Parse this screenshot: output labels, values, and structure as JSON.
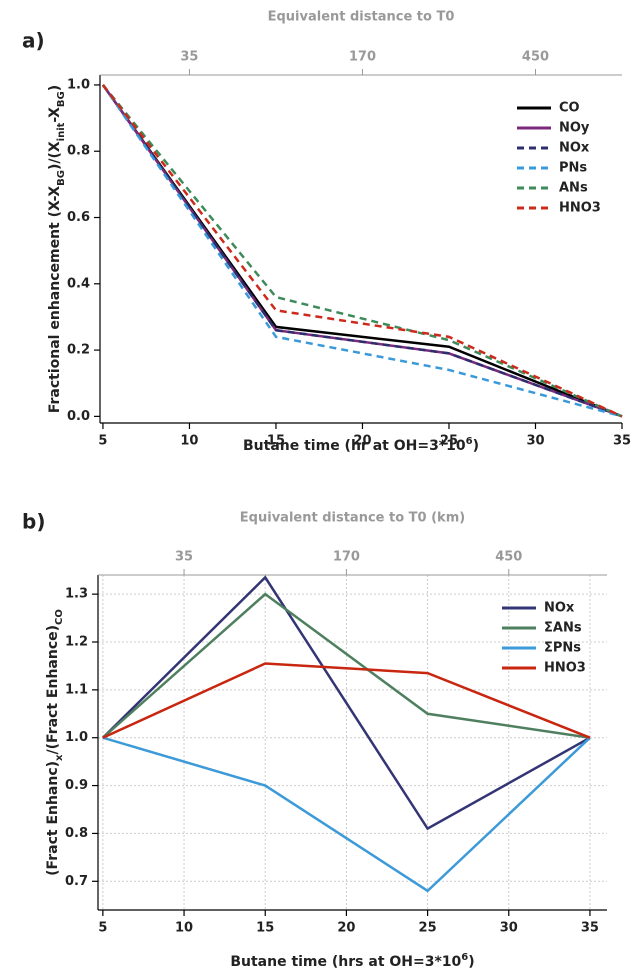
{
  "chart_data": [
    {
      "type": "line",
      "panel_label": "a)",
      "top_axis_label": "Equivalent distance to T0",
      "x_label": [
        {
          "text": "Butane time (hr at OH=3*10"
        },
        {
          "text": "6",
          "sup": true
        },
        {
          "text": ")"
        }
      ],
      "y_label": [
        {
          "text": "Fractional enhancement (X-X"
        },
        {
          "text": "BG",
          "sub": true
        },
        {
          "text": ")/(X"
        },
        {
          "text": "init",
          "sub": true
        },
        {
          "text": "-X"
        },
        {
          "text": "BG",
          "sub": true
        },
        {
          "text": ")"
        }
      ],
      "x": [
        5,
        15,
        25,
        35
      ],
      "xlim": [
        4.83,
        35
      ],
      "ylim": [
        -0.02,
        1.03
      ],
      "xticks": [
        5,
        10,
        15,
        20,
        25,
        30,
        35
      ],
      "yticks": [
        {
          "value": 0,
          "label": "0.0"
        },
        0.2,
        0.4,
        0.6,
        0.8,
        {
          "value": 1,
          "label": "1.0"
        }
      ],
      "x2ticks": [
        {
          "value": 10,
          "label": "35"
        },
        {
          "value": 20,
          "label": "170"
        },
        {
          "value": 30,
          "label": "450"
        }
      ],
      "grid": false,
      "legend": "upper right",
      "series": [
        {
          "name": "CO",
          "color": "#000000",
          "dashed": false,
          "values": [
            1.0,
            0.27,
            0.21,
            0.0
          ]
        },
        {
          "name": "NOy",
          "color": "#7b2a7b",
          "dashed": false,
          "values": [
            1.0,
            0.26,
            0.19,
            0.0
          ]
        },
        {
          "name": "NOx",
          "color": "#2e2e6e",
          "dashed": true,
          "values": [
            1.0,
            0.26,
            0.19,
            0.0
          ]
        },
        {
          "name": "PNs",
          "color": "#3a9ad9",
          "dashed": true,
          "values": [
            1.0,
            0.24,
            0.14,
            0.0
          ]
        },
        {
          "name": "ANs",
          "color": "#3d8a5a",
          "dashed": true,
          "values": [
            1.0,
            0.36,
            0.23,
            0.0
          ]
        },
        {
          "name": "HNO3",
          "color": "#cc2a1a",
          "dashed": true,
          "values": [
            1.0,
            0.32,
            0.24,
            0.0
          ]
        }
      ]
    },
    {
      "type": "line",
      "panel_label": "b)",
      "top_axis_label": "Equivalent distance to T0 (km)",
      "x_label": [
        {
          "text": "Butane time (hrs at OH=3*10"
        },
        {
          "text": "6",
          "sup": true
        },
        {
          "text": ")"
        }
      ],
      "y_label": [
        {
          "text": "(Fract Enhanc)"
        },
        {
          "text": "x",
          "sub": true
        },
        {
          "text": "/(Fract Enhance)"
        },
        {
          "text": "CO",
          "sub": true
        }
      ],
      "x": [
        5,
        15,
        25,
        35
      ],
      "xlim": [
        4.7,
        36.05
      ],
      "ylim": [
        0.64,
        1.34
      ],
      "xticks": [
        5,
        10,
        15,
        20,
        25,
        30,
        35
      ],
      "yticks": [
        0.7,
        0.8,
        0.9,
        {
          "value": 1,
          "label": "1.0"
        },
        1.1,
        1.2,
        1.3
      ],
      "x2ticks": [
        {
          "value": 10,
          "label": "35"
        },
        {
          "value": 20,
          "label": "170"
        },
        {
          "value": 30,
          "label": "450"
        }
      ],
      "grid": true,
      "legend": "upper right",
      "series": [
        {
          "name": "NOx",
          "color": "#333575",
          "dashed": false,
          "values": [
            1.0,
            1.335,
            0.81,
            1.0
          ]
        },
        {
          "name": "ΣANs",
          "color": "#4e7f5e",
          "dashed": false,
          "values": [
            1.0,
            1.3,
            1.05,
            1.0
          ]
        },
        {
          "name": "ΣPNs",
          "color": "#3d9ad9",
          "dashed": false,
          "values": [
            1.0,
            0.9,
            0.68,
            1.0
          ]
        },
        {
          "name": "HNO3",
          "color": "#c8260f",
          "dashed": false,
          "values": [
            1.0,
            1.155,
            1.135,
            1.0
          ]
        }
      ]
    }
  ]
}
